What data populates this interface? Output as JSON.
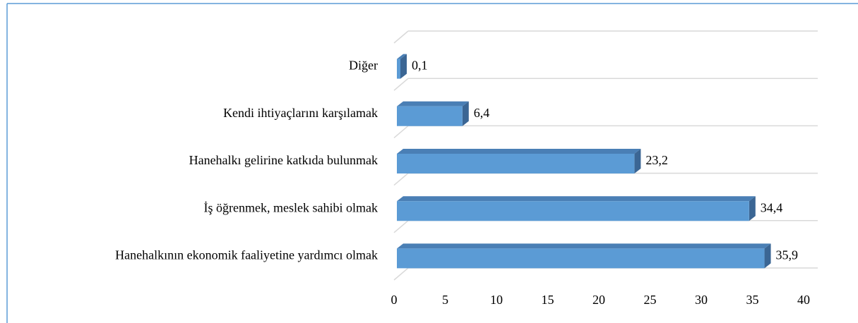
{
  "chart_data": {
    "type": "bar3d_horizontal",
    "categories": [
      "Diğer",
      "Kendi ihtiyaçlarını karşılamak",
      "Hanehalkı gelirine katkıda bulunmak",
      "İş öğrenmek, meslek sahibi olmak",
      "Hanehalkının ekonomik faaliyetine yardımcı olmak"
    ],
    "values": [
      0.1,
      6.4,
      23.2,
      34.4,
      35.9
    ],
    "value_labels": [
      "0,1",
      "6,4",
      "23,2",
      "34,4",
      "35,9"
    ],
    "color": "#5b9bd5",
    "xlim": [
      0,
      40
    ],
    "xticks": [
      0,
      5,
      10,
      15,
      20,
      25,
      30,
      35,
      40
    ],
    "grid": true
  }
}
